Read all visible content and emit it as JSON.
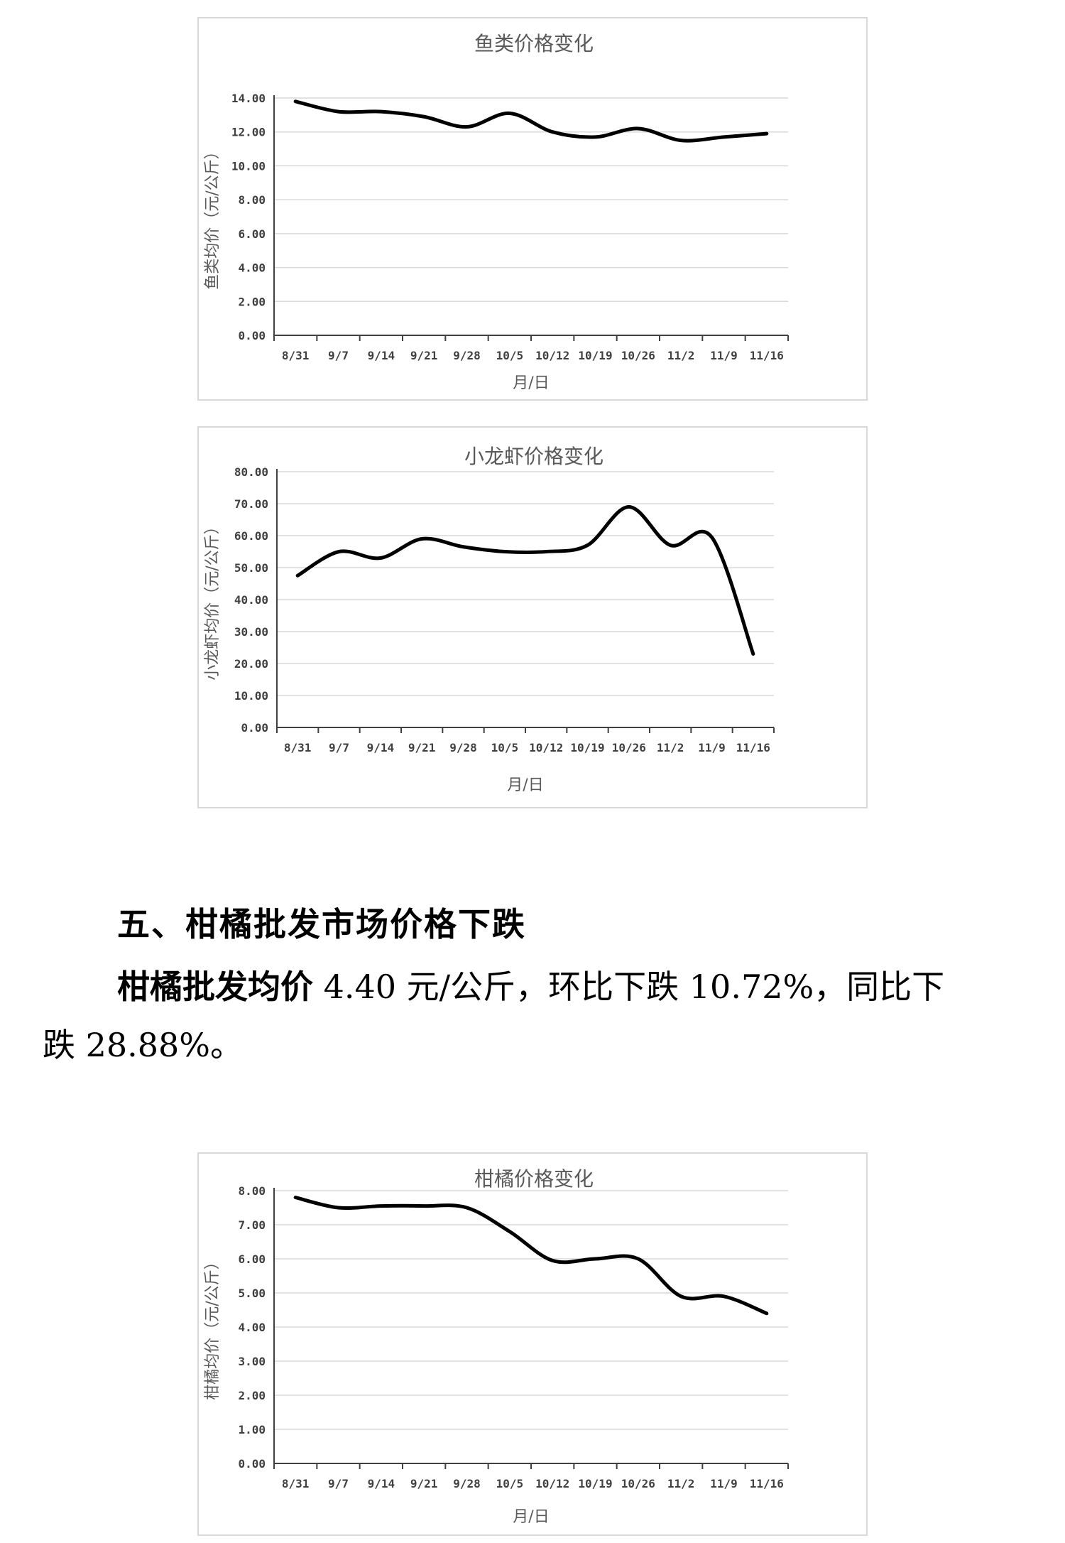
{
  "chart_data": [
    {
      "type": "line",
      "title": "鱼类价格变化",
      "xlabel": "月/日",
      "ylabel": "鱼类均价（元/公斤）",
      "categories": [
        "8/31",
        "9/7",
        "9/14",
        "9/21",
        "9/28",
        "10/5",
        "10/12",
        "10/19",
        "10/26",
        "11/2",
        "11/9",
        "11/16"
      ],
      "ylim": [
        0,
        14
      ],
      "yticks": [
        "0.00",
        "2.00",
        "4.00",
        "6.00",
        "8.00",
        "10.00",
        "12.00",
        "14.00"
      ],
      "grid": true,
      "series": [
        {
          "values": [
            13.8,
            13.2,
            13.2,
            12.9,
            12.3,
            13.1,
            12.0,
            11.7,
            12.2,
            11.5,
            11.7,
            11.9
          ]
        }
      ]
    },
    {
      "type": "line",
      "title": "小龙虾价格变化",
      "xlabel": "月/日",
      "ylabel": "小龙虾均价（元/公斤）",
      "categories": [
        "8/31",
        "9/7",
        "9/14",
        "9/21",
        "9/28",
        "10/5",
        "10/12",
        "10/19",
        "10/26",
        "11/2",
        "11/9",
        "11/16"
      ],
      "ylim": [
        0,
        80
      ],
      "yticks": [
        "0.00",
        "10.00",
        "20.00",
        "30.00",
        "40.00",
        "50.00",
        "60.00",
        "70.00",
        "80.00"
      ],
      "grid": true,
      "series": [
        {
          "values": [
            47.5,
            55.0,
            53.0,
            59.0,
            56.5,
            55.0,
            55.0,
            57.0,
            69.0,
            57.0,
            59.5,
            23.0
          ]
        }
      ]
    },
    {
      "type": "line",
      "title": "柑橘价格变化",
      "xlabel": "月/日",
      "ylabel": "柑橘均价（元/公斤）",
      "categories": [
        "8/31",
        "9/7",
        "9/14",
        "9/21",
        "9/28",
        "10/5",
        "10/12",
        "10/19",
        "10/26",
        "11/2",
        "11/9",
        "11/16"
      ],
      "ylim": [
        0,
        8
      ],
      "yticks": [
        "0.00",
        "1.00",
        "2.00",
        "3.00",
        "4.00",
        "5.00",
        "6.00",
        "7.00",
        "8.00"
      ],
      "grid": true,
      "series": [
        {
          "values": [
            7.8,
            7.5,
            7.55,
            7.55,
            7.5,
            6.8,
            5.95,
            6.0,
            6.0,
            4.9,
            4.9,
            4.4
          ]
        }
      ]
    }
  ],
  "section": {
    "heading": "五、柑橘批发市场价格下跌",
    "para_bold": "柑橘批发均价",
    "para_rest_line1": " 4.40 元/公斤，环比下跌 10.72%，同比下",
    "para_line2": "跌 28.88%。"
  }
}
